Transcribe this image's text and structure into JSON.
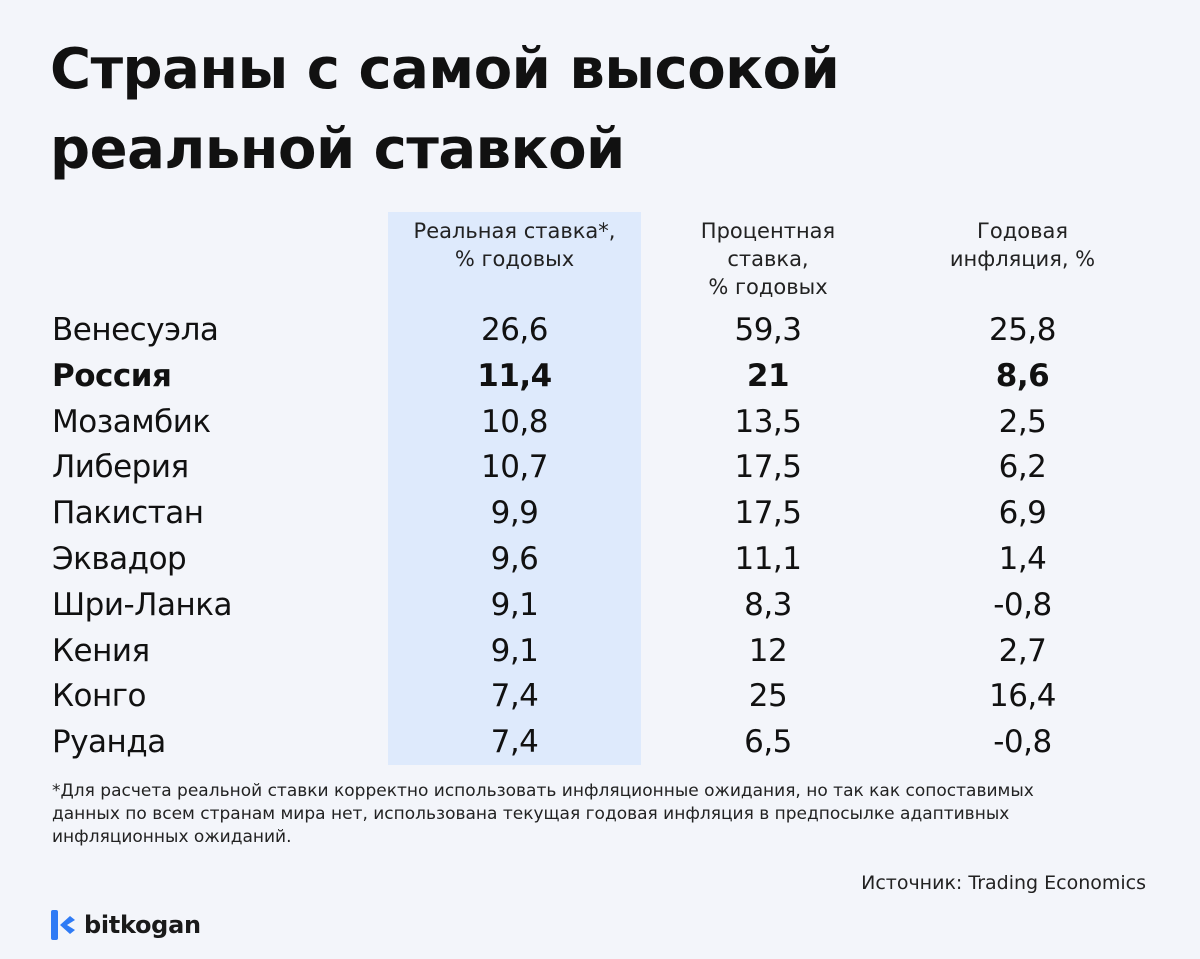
{
  "chart_data": {
    "type": "table",
    "title_lines": [
      "Страны с самой высокой",
      "реальной ставкой"
    ],
    "columns": [
      {
        "key": "real",
        "label": "Реальная ставка*,\n% годовых"
      },
      {
        "key": "rate",
        "label": "Процентная\nставка,\n% годовых"
      },
      {
        "key": "infl",
        "label": "Годовая\nинфляция, %"
      }
    ],
    "rows": [
      {
        "country": "Венесуэла",
        "real": "26,6",
        "rate": "59,3",
        "infl": "25,8",
        "highlight": false
      },
      {
        "country": "Россия",
        "real": "11,4",
        "rate": "21",
        "infl": "8,6",
        "highlight": true
      },
      {
        "country": "Мозамбик",
        "real": "10,8",
        "rate": "13,5",
        "infl": "2,5",
        "highlight": false
      },
      {
        "country": "Либерия",
        "real": "10,7",
        "rate": "17,5",
        "infl": "6,2",
        "highlight": false
      },
      {
        "country": "Пакистан",
        "real": "9,9",
        "rate": "17,5",
        "infl": "6,9",
        "highlight": false
      },
      {
        "country": "Эквадор",
        "real": "9,6",
        "rate": "11,1",
        "infl": "1,4",
        "highlight": false
      },
      {
        "country": "Шри-Ланка",
        "real": "9,1",
        "rate": "8,3",
        "infl": "-0,8",
        "highlight": false
      },
      {
        "country": "Кения",
        "real": "9,1",
        "rate": "12",
        "infl": "2,7",
        "highlight": false
      },
      {
        "country": "Конго",
        "real": "7,4",
        "rate": "25",
        "infl": "16,4",
        "highlight": false
      },
      {
        "country": "Руанда",
        "real": "7,4",
        "rate": "6,5",
        "infl": "-0,8",
        "highlight": false
      }
    ],
    "footnote": "*Для расчета реальной ставки корректно использовать инфляционные ожидания, но так как сопоставимых данных по всем странам мира нет, использована текущая годовая инфляция в предпосылке адаптивных инфляционных ожиданий.",
    "source": "Источник: Trading Economics"
  },
  "brand": {
    "name": "bitkogan",
    "icon": "bitkogan-logo-icon",
    "color": "#2f7bf5"
  },
  "colors": {
    "background": "#f3f5fa",
    "highlight_column": "#deeafc",
    "text": "#111111"
  }
}
